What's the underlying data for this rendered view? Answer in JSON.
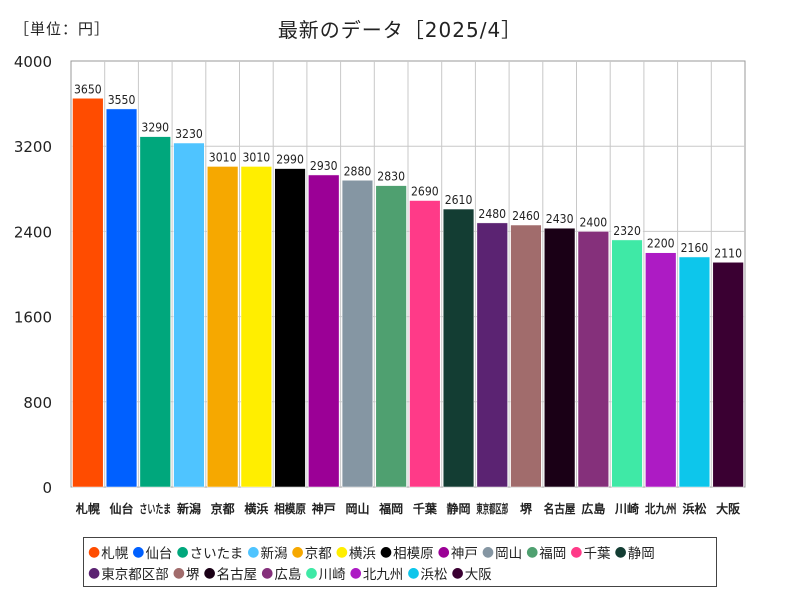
{
  "unit_label": "［単位：円］",
  "chart_data": {
    "type": "bar",
    "title": "最新のデータ［2025/4］",
    "ylim": [
      0,
      4000
    ],
    "yticks": [
      0,
      800,
      1600,
      2400,
      3200,
      4000
    ],
    "grid": true,
    "legend_position": "bottom",
    "categories": [
      "札幌",
      "仙台",
      "さいたま",
      "新潟",
      "京都",
      "横浜",
      "相模原",
      "神戸",
      "岡山",
      "福岡",
      "千葉",
      "静岡",
      "東京都区部",
      "堺",
      "名古屋",
      "広島",
      "川崎",
      "北九州",
      "浜松",
      "大阪"
    ],
    "axis_labels": [
      "札幌",
      "仙台",
      "さいたま",
      "新潟",
      "京都",
      "横浜",
      "相模原",
      "神戸",
      "岡山",
      "福岡",
      "千葉",
      "静岡",
      "東京都区部",
      "堺",
      "名古屋",
      "広島",
      "川崎",
      "北九州",
      "浜松",
      "大阪"
    ],
    "values": [
      3650,
      3550,
      3290,
      3230,
      3010,
      3010,
      2990,
      2930,
      2880,
      2830,
      2690,
      2610,
      2480,
      2460,
      2430,
      2400,
      2320,
      2200,
      2160,
      2110
    ],
    "colors": [
      "#ff4c00",
      "#0060ff",
      "#00a77c",
      "#4fc4ff",
      "#f6a800",
      "#ffee00",
      "#000000",
      "#9b0096",
      "#8596a3",
      "#4fa070",
      "#ff3a88",
      "#133d33",
      "#5b2372",
      "#a16c6c",
      "#1a0016",
      "#85307b",
      "#3fe9a6",
      "#ad1bc4",
      "#0dc6eb",
      "#3a0032"
    ]
  }
}
